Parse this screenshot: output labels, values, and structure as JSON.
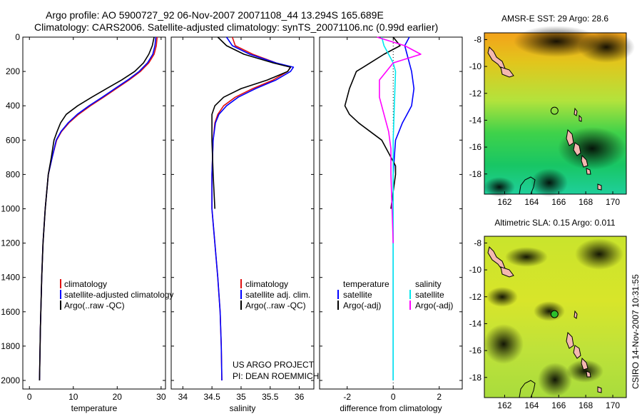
{
  "figure": {
    "title_line1": "Argo profile: AO 5900727_92 06-Nov-2007 20071108_44 13.294S 165.689E",
    "title_line2": "Climatology: CARS2006. Satellite-adjusted climatology: synTS_20071106.nc (0.99d earlier)",
    "footer_line1": "US ARGO PROJECT",
    "footer_line2": "PI: DEAN ROEMMICH",
    "stamp": "CSIRO 14-Nov-2007 10:31:55"
  },
  "colors": {
    "climatology": "#e01010",
    "satellite": "#0000ff",
    "argo": "#000000",
    "satellite_sal": "#00e8ee",
    "argo_sal": "#ff00ff"
  },
  "chart_data": [
    {
      "type": "line",
      "xlabel": "temperature",
      "xlim": [
        -1.5,
        31
      ],
      "xticks": [
        0,
        10,
        20,
        30
      ],
      "ylim": [
        2050,
        0
      ],
      "yticks": [
        0,
        200,
        400,
        600,
        800,
        1000,
        1200,
        1400,
        1600,
        1800,
        2000
      ],
      "legend": [
        "climatology",
        "satellite-adjusted climatology",
        "Argo(..raw -QC)"
      ],
      "legend_position": "lower-left",
      "series": [
        {
          "name": "climatology",
          "color_key": "climatology",
          "x": [
            29.1,
            28.9,
            28.4,
            27.2,
            25.3,
            22.7,
            19.8,
            16.9,
            13.9,
            11.2,
            9.0,
            7.3,
            6.2,
            5.2,
            4.3,
            3.6,
            3.1,
            2.8,
            2.5,
            2.3
          ],
          "y": [
            0,
            50,
            100,
            150,
            200,
            250,
            300,
            350,
            400,
            450,
            500,
            550,
            600,
            700,
            800,
            1000,
            1200,
            1400,
            1700,
            2000
          ]
        },
        {
          "name": "satellite-adjusted climatology",
          "color_key": "satellite",
          "x": [
            28.8,
            28.6,
            28.1,
            26.9,
            25.0,
            22.4,
            19.5,
            16.6,
            13.6,
            10.9,
            8.8,
            7.2,
            6.1,
            5.2,
            4.3,
            3.6,
            3.1,
            2.8,
            2.5,
            2.3
          ],
          "y": [
            0,
            50,
            100,
            150,
            200,
            250,
            300,
            350,
            400,
            450,
            500,
            550,
            600,
            700,
            800,
            1000,
            1200,
            1400,
            1700,
            2000
          ]
        },
        {
          "name": "Argo(..raw -QC)",
          "color_key": "argo",
          "x": [
            28.4,
            28.0,
            27.2,
            26.0,
            24.0,
            21.0,
            17.6,
            14.2,
            11.0,
            8.4,
            7.1,
            6.3,
            5.6,
            5.0,
            4.3,
            3.6,
            3.1,
            2.8,
            2.5,
            2.3
          ],
          "y": [
            0,
            50,
            100,
            150,
            200,
            250,
            300,
            350,
            400,
            450,
            500,
            550,
            600,
            700,
            800,
            1000,
            1200,
            1400,
            1700,
            2000
          ]
        }
      ]
    },
    {
      "type": "line",
      "xlabel": "salinity",
      "xlim": [
        33.8,
        36.25
      ],
      "xticks": [
        34,
        34.5,
        35,
        35.5,
        36
      ],
      "xticklabels": [
        "34",
        "34.5",
        "35",
        "35.5",
        "36"
      ],
      "ylim": [
        2050,
        0
      ],
      "legend": [
        "climatology",
        "satellite adj. clim.",
        "Argo(..raw -QC)"
      ],
      "legend_position": "lower-left",
      "series": [
        {
          "name": "climatology",
          "color_key": "climatology",
          "x": [
            34.85,
            34.9,
            35.2,
            35.6,
            35.85,
            35.8,
            35.55,
            35.2,
            34.9,
            34.7,
            34.6,
            34.55,
            34.52,
            34.5,
            34.5,
            34.55,
            34.6,
            34.64,
            34.66,
            34.67
          ],
          "y": [
            0,
            50,
            100,
            150,
            175,
            200,
            250,
            300,
            350,
            400,
            450,
            500,
            600,
            800,
            1000,
            1200,
            1400,
            1600,
            1800,
            2000
          ]
        },
        {
          "name": "satellite adj. clim.",
          "color_key": "satellite",
          "x": [
            34.75,
            34.85,
            35.15,
            35.6,
            35.9,
            35.85,
            35.6,
            35.25,
            34.95,
            34.75,
            34.62,
            34.56,
            34.52,
            34.5,
            34.5,
            34.55,
            34.6,
            34.64,
            34.66,
            34.67
          ],
          "y": [
            0,
            50,
            100,
            150,
            175,
            200,
            250,
            300,
            350,
            400,
            450,
            500,
            600,
            800,
            1000,
            1200,
            1400,
            1600,
            1800,
            2000
          ]
        },
        {
          "name": "Argo(..raw -QC)",
          "color_key": "argo",
          "x": [
            34.6,
            34.75,
            35.05,
            35.55,
            35.85,
            35.8,
            35.45,
            35.0,
            34.7,
            34.55,
            34.5,
            34.5,
            34.5,
            34.52,
            34.55
          ],
          "y": [
            0,
            50,
            100,
            150,
            175,
            200,
            250,
            300,
            350,
            400,
            450,
            500,
            600,
            800,
            1000
          ]
        }
      ]
    },
    {
      "type": "line",
      "xlabel": "difference from climatology",
      "xlim": [
        -3.2,
        3.0
      ],
      "xticks": [
        -2,
        0,
        2
      ],
      "ylim": [
        2050,
        0
      ],
      "legend": [
        "temperature",
        "satellite",
        "Argo(-adj)",
        "salinity",
        "satellite",
        "Argo(-adj)"
      ],
      "legend_position": "lower",
      "series": [
        {
          "name": "temperature satellite",
          "color_key": "satellite",
          "x": [
            0.7,
            0.5,
            0.6,
            0.7,
            0.8,
            0.9,
            0.8,
            0.6,
            0.4,
            0.25,
            0.1,
            0.05,
            0.0,
            0.0,
            0.0,
            0.0
          ],
          "y": [
            0,
            50,
            100,
            150,
            200,
            300,
            400,
            450,
            500,
            550,
            600,
            700,
            800,
            1000,
            1500,
            2000
          ]
        },
        {
          "name": "temperature Argo(-adj)",
          "color_key": "argo",
          "x": [
            0.0,
            0.3,
            -0.4,
            -1.0,
            -1.6,
            -1.9,
            -2.1,
            -1.9,
            -1.5,
            -1.0,
            -0.5,
            -0.1,
            0.1,
            0.1,
            0.0,
            -0.1
          ],
          "y": [
            0,
            50,
            100,
            150,
            200,
            300,
            400,
            450,
            500,
            550,
            600,
            700,
            750,
            800,
            900,
            1000
          ]
        },
        {
          "name": "salinity satellite",
          "color_key": "satellite_sal",
          "x": [
            -0.5,
            -0.4,
            -0.2,
            0.0,
            0.1,
            0.05,
            0.0,
            0.0,
            0.0
          ],
          "y": [
            0,
            50,
            100,
            150,
            200,
            400,
            600,
            1000,
            2000
          ]
        },
        {
          "name": "salinity Argo(-adj)",
          "color_key": "argo_sal",
          "x": [
            -0.7,
            0.5,
            1.2,
            0.0,
            -0.6,
            -0.6,
            -0.4,
            -0.2,
            -0.1,
            -0.1,
            -0.05,
            0.0
          ],
          "y": [
            0,
            50,
            100,
            150,
            250,
            350,
            450,
            550,
            650,
            800,
            1000,
            1200
          ]
        }
      ]
    },
    {
      "type": "heatmap",
      "title": "AMSR-E SST: 29 Argo: 28.6",
      "xlim": [
        160.5,
        171
      ],
      "ylim": [
        -19.5,
        -7.5
      ],
      "xticks": [
        162,
        164,
        166,
        168,
        170
      ],
      "yticks": [
        -8,
        -10,
        -12,
        -14,
        -16,
        -18
      ],
      "argo_position": [
        165.689,
        -13.294
      ]
    },
    {
      "type": "heatmap",
      "title": "Altimetric SLA: 0.15 Argo: 0.011",
      "xlim": [
        160.5,
        171
      ],
      "ylim": [
        -19.5,
        -7.5
      ],
      "xticks": [
        162,
        164,
        166,
        168,
        170
      ],
      "yticks": [
        -8,
        -10,
        -12,
        -14,
        -16,
        -18
      ],
      "argo_position": [
        165.689,
        -13.294
      ]
    }
  ]
}
